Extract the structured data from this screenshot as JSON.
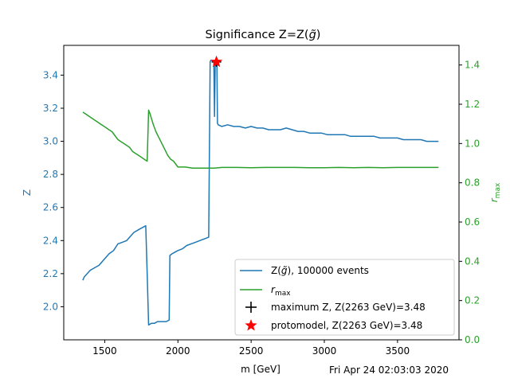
{
  "chart_data": {
    "type": "line",
    "title_parts": [
      "Significance Z=Z(",
      "g",
      "̃",
      ")"
    ],
    "xlabel": "m [GeV]",
    "ylabel_left": "Z",
    "ylabel_right_main": "r",
    "ylabel_right_sub": "max",
    "xlim": [
      1220,
      3920
    ],
    "ylim_left": [
      1.8,
      3.58
    ],
    "ylim_right": [
      0.0,
      1.5
    ],
    "xticks": [
      1500,
      2000,
      2500,
      3000,
      3500
    ],
    "yticks_left": [
      2.0,
      2.2,
      2.4,
      2.6,
      2.8,
      3.0,
      3.2,
      3.4
    ],
    "yticks_right": [
      0.0,
      0.2,
      0.4,
      0.6,
      0.8,
      1.0,
      1.2,
      1.4
    ],
    "grid": false,
    "legend_position": "lower-right",
    "colors": {
      "z_series": "#1f77b4",
      "rmax_series": "#2ca02c",
      "star": "#ff0000",
      "axis": "#000000"
    },
    "series": [
      {
        "key": "z",
        "axis": "left",
        "legend_parts": [
          "Z(",
          "g",
          "̃",
          "), 100000 events"
        ],
        "x": [
          1350,
          1360,
          1380,
          1400,
          1420,
          1440,
          1460,
          1480,
          1500,
          1530,
          1560,
          1590,
          1620,
          1650,
          1680,
          1700,
          1720,
          1740,
          1760,
          1780,
          1790,
          1800,
          1820,
          1840,
          1860,
          1880,
          1900,
          1920,
          1940,
          1945,
          1960,
          1980,
          2000,
          2030,
          2060,
          2090,
          2120,
          2150,
          2180,
          2210,
          2220,
          2225,
          2235,
          2245,
          2250,
          2255,
          2260,
          2263,
          2266,
          2270,
          2275,
          2300,
          2340,
          2380,
          2420,
          2460,
          2500,
          2540,
          2580,
          2620,
          2660,
          2700,
          2740,
          2780,
          2820,
          2860,
          2900,
          2940,
          2980,
          3020,
          3060,
          3100,
          3140,
          3180,
          3220,
          3260,
          3300,
          3340,
          3380,
          3420,
          3460,
          3500,
          3540,
          3580,
          3620,
          3660,
          3700,
          3740,
          3780
        ],
        "y": [
          2.16,
          2.18,
          2.2,
          2.22,
          2.23,
          2.24,
          2.25,
          2.27,
          2.29,
          2.32,
          2.34,
          2.38,
          2.39,
          2.4,
          2.43,
          2.45,
          2.46,
          2.47,
          2.48,
          2.49,
          2.2,
          1.89,
          1.9,
          1.9,
          1.91,
          1.91,
          1.91,
          1.91,
          1.92,
          2.31,
          2.32,
          2.33,
          2.34,
          2.35,
          2.37,
          2.38,
          2.39,
          2.4,
          2.41,
          2.42,
          3.48,
          3.49,
          3.49,
          3.48,
          3.15,
          3.48,
          3.46,
          3.48,
          3.47,
          3.11,
          3.1,
          3.09,
          3.1,
          3.09,
          3.09,
          3.08,
          3.09,
          3.08,
          3.08,
          3.07,
          3.07,
          3.07,
          3.08,
          3.07,
          3.06,
          3.06,
          3.05,
          3.05,
          3.05,
          3.04,
          3.04,
          3.04,
          3.04,
          3.03,
          3.03,
          3.03,
          3.03,
          3.03,
          3.02,
          3.02,
          3.02,
          3.02,
          3.01,
          3.01,
          3.01,
          3.01,
          3.0,
          3.0,
          3.0
        ]
      },
      {
        "key": "rmax",
        "axis": "right",
        "legend_main": "r",
        "legend_sub": "max",
        "x": [
          1350,
          1370,
          1390,
          1410,
          1430,
          1450,
          1470,
          1490,
          1510,
          1530,
          1550,
          1570,
          1590,
          1610,
          1630,
          1650,
          1670,
          1690,
          1710,
          1730,
          1750,
          1770,
          1790,
          1800,
          1810,
          1830,
          1850,
          1870,
          1890,
          1910,
          1930,
          1950,
          1970,
          1990,
          2000,
          2010,
          2050,
          2100,
          2150,
          2200,
          2250,
          2300,
          2400,
          2500,
          2600,
          2700,
          2800,
          2900,
          3000,
          3100,
          3200,
          3300,
          3400,
          3500,
          3600,
          3700,
          3780
        ],
        "y": [
          1.16,
          1.15,
          1.14,
          1.13,
          1.12,
          1.11,
          1.1,
          1.09,
          1.08,
          1.07,
          1.06,
          1.04,
          1.02,
          1.01,
          1.0,
          0.99,
          0.98,
          0.96,
          0.95,
          0.94,
          0.93,
          0.92,
          0.91,
          1.17,
          1.15,
          1.1,
          1.06,
          1.03,
          1.0,
          0.97,
          0.94,
          0.92,
          0.91,
          0.89,
          0.88,
          0.88,
          0.88,
          0.875,
          0.875,
          0.875,
          0.875,
          0.878,
          0.878,
          0.877,
          0.878,
          0.878,
          0.878,
          0.877,
          0.877,
          0.878,
          0.877,
          0.878,
          0.877,
          0.878,
          0.878,
          0.878,
          0.878
        ]
      }
    ],
    "markers": [
      {
        "key": "maximum",
        "symbol": "plus",
        "x": 2263,
        "y": 3.48,
        "legend": "maximum Z, Z(2263 GeV)=3.48"
      },
      {
        "key": "protomodel",
        "symbol": "star",
        "x": 2263,
        "y": 3.48,
        "legend": "protomodel, Z(2263 GeV)=3.48"
      }
    ],
    "timestamp": "Fri Apr 24 02:03:03 2020"
  }
}
